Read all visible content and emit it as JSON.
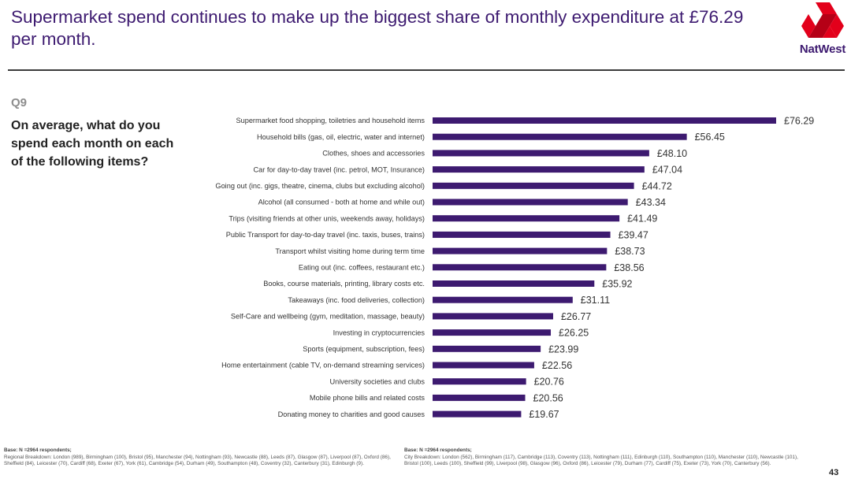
{
  "headline": "Supermarket spend continues to make up the biggest share of monthly expenditure at £76.29 per month.",
  "brand": {
    "name": "NatWest",
    "logo_colors": [
      "#e3001b",
      "#b50016"
    ],
    "accent": "#3d1a70"
  },
  "question": {
    "number": "Q9",
    "text": "On average, what do you spend each month on each of the following items?"
  },
  "chart_data": {
    "type": "bar",
    "orientation": "horizontal",
    "bar_color": "#3d1a70",
    "currency": "£",
    "categories": [
      "Supermarket food shopping, toiletries and household items",
      "Household bills (gas, oil, electric, water and internet)",
      "Clothes, shoes and accessories",
      "Car for day-to-day travel (inc. petrol, MOT, Insurance)",
      "Going out (inc. gigs, theatre, cinema, clubs but excluding alcohol)",
      "Alcohol (all consumed - both at home and while out)",
      "Trips (visiting friends at other unis, weekends away, holidays)",
      "Public Transport for day-to-day travel (inc. taxis, buses, trains)",
      "Transport whilst visiting home during term time",
      "Eating out (inc. coffees, restaurant etc.)",
      "Books, course materials, printing, library costs etc.",
      "Takeaways (inc. food deliveries, collection)",
      "Self-Care and wellbeing (gym, meditation, massage, beauty)",
      "Investing in cryptocurrencies",
      "Sports (equipment, subscription, fees)",
      "Home entertainment (cable TV, on-demand streaming services)",
      "University societies and clubs",
      "Mobile phone bills and related costs",
      "Donating money to charities and good causes"
    ],
    "values": [
      76.29,
      56.45,
      48.1,
      47.04,
      44.72,
      43.34,
      41.49,
      39.47,
      38.73,
      38.56,
      35.92,
      31.11,
      26.77,
      26.25,
      23.99,
      22.56,
      20.76,
      20.56,
      19.67
    ],
    "value_labels": [
      "£76.29",
      "£56.45",
      "£48.10",
      "£47.04",
      "£44.72",
      "£43.34",
      "£41.49",
      "£39.47",
      "£38.73",
      "£38.56",
      "£35.92",
      "£31.11",
      "£26.77",
      "£26.25",
      "£23.99",
      "£22.56",
      "£20.76",
      "£20.56",
      "£19.67"
    ],
    "xlim": [
      0,
      76.29
    ],
    "grid": false,
    "axis_lines": false
  },
  "footnotes": {
    "left": {
      "base": "Base: N =2964 respondents;",
      "detail": "Regional Breakdown: London (989), Birmingham (100), Bristol (95), Manchester (94), Nottingham (93), Newcastle (88), Leeds (87), Glasgow (87), Liverpool (87), Oxford (86), Sheffield (84), Leicester (70), Cardiff (68), Exeter (67), York (61), Cambridge (54), Durham (49), Southampton (48), Coventry (32), Canterbury (31), Edinburgh (9)."
    },
    "right": {
      "base": "Base: N =2964 respondents;",
      "detail": "City Breakdown: London (562), Birmingham (117), Cambridge (113), Coventry (113), Nottingham (111), Edinburgh (110), Southampton (110), Manchester (110), Newcastle (101), Bristol (100), Leeds (100), Sheffield (99), Liverpool (98), Glasgow (96), Oxford (86), Leicester (79), Durham (77), Cardiff (75), Exeter (73), York (70), Canterbury (56)."
    }
  },
  "page_number": "43"
}
